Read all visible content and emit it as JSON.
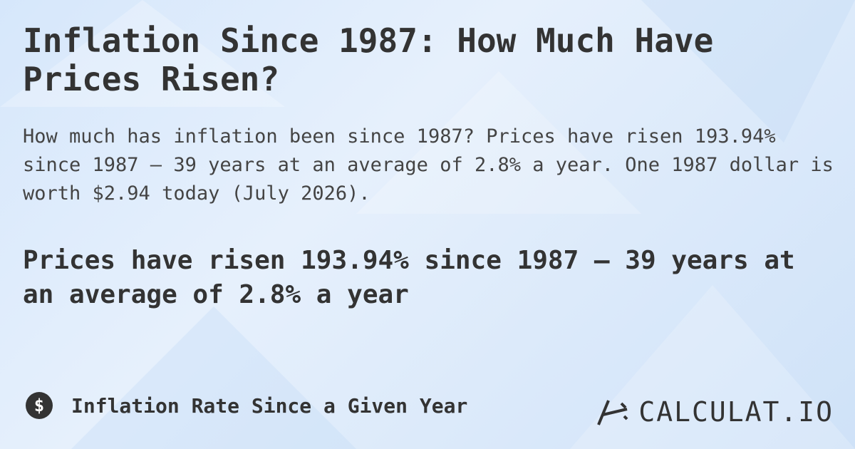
{
  "header": {
    "title": "Inflation Since 1987: How Much Have Prices Risen?"
  },
  "intro": "How much has inflation been since 1987? Prices have risen 193.94% since 1987 — 39 years at an average of 2.8% a year. One 1987 dollar is worth $2.94 today (July 2026).",
  "highlight": "Prices have risen 193.94% since 1987 — 39 years at an average of 2.8% a year",
  "footer": {
    "icon": "$",
    "label": "Inflation Rate Since a Given Year",
    "brand": "CALCULAT.IO"
  }
}
